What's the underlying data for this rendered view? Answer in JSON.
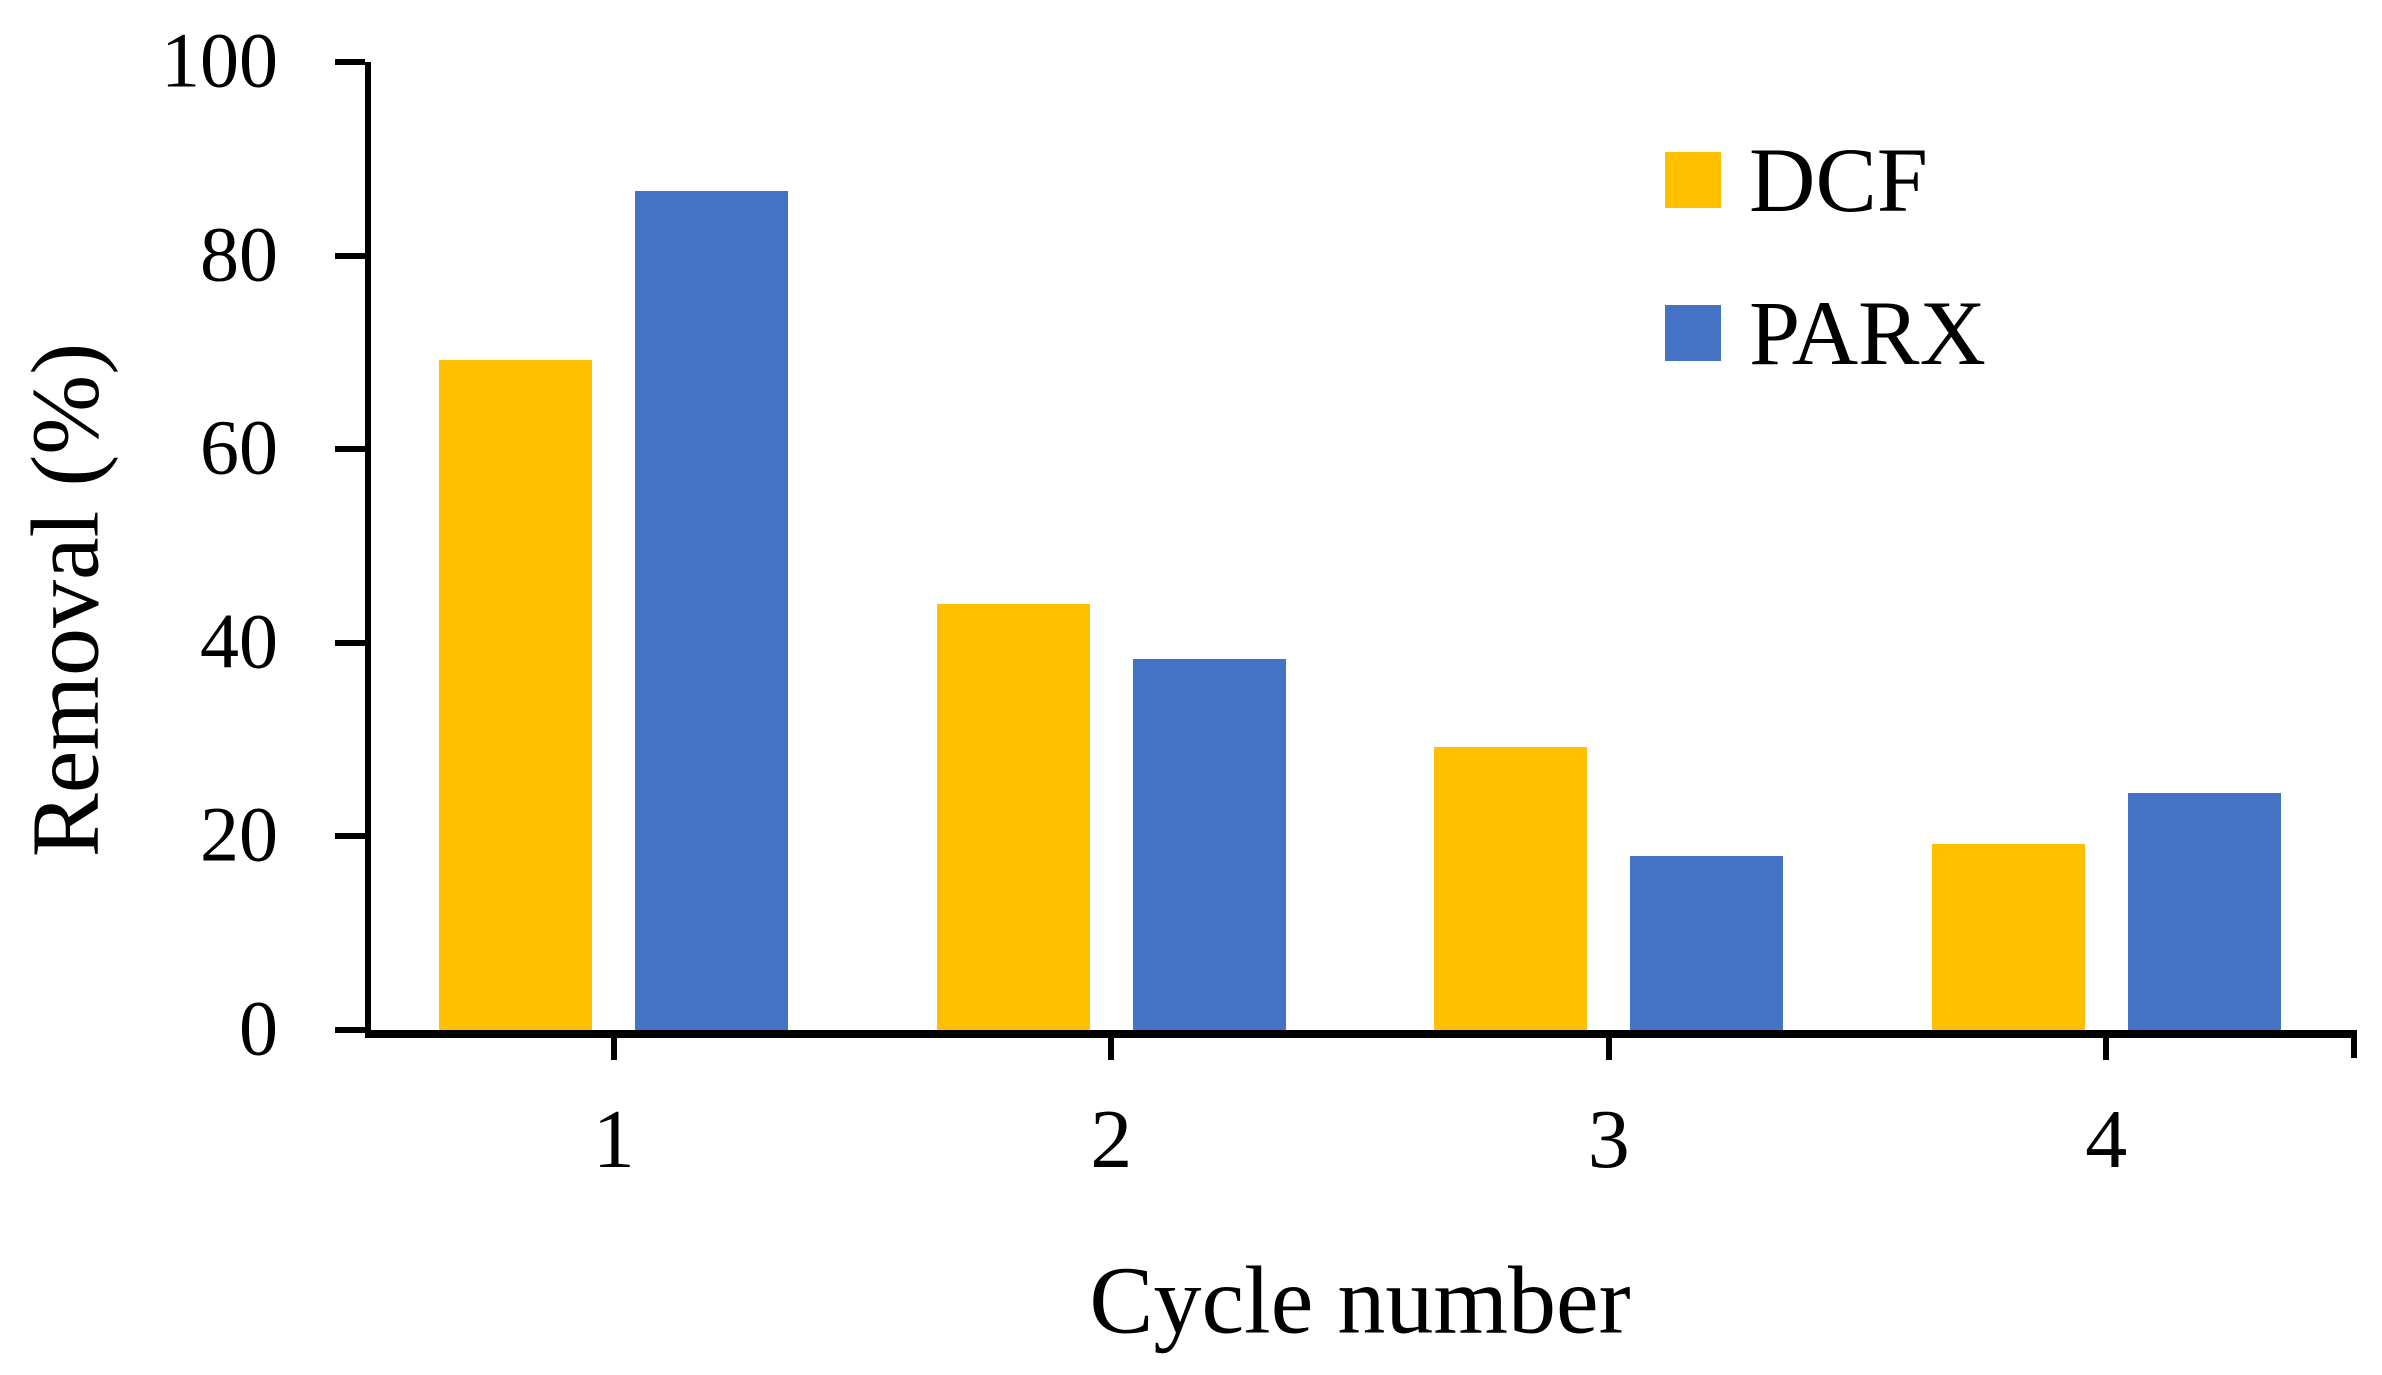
{
  "chart_data": {
    "type": "bar",
    "categories": [
      "1",
      "2",
      "3",
      "4"
    ],
    "series": [
      {
        "name": "DCF",
        "color": "#FFC000",
        "values": [
          69.2,
          44.0,
          29.2,
          19.2
        ]
      },
      {
        "name": "PARX",
        "color": "#4472C4",
        "values": [
          86.7,
          38.3,
          18.0,
          24.5
        ]
      }
    ],
    "xlabel": "Cycle number",
    "ylabel": "Removal (%)",
    "ylim": [
      0,
      100
    ],
    "yticks": [
      0,
      20,
      40,
      60,
      80,
      100
    ],
    "grid": false,
    "legend_position": "upper right",
    "axis_color": "#000000",
    "background_color": "#ffffff"
  }
}
